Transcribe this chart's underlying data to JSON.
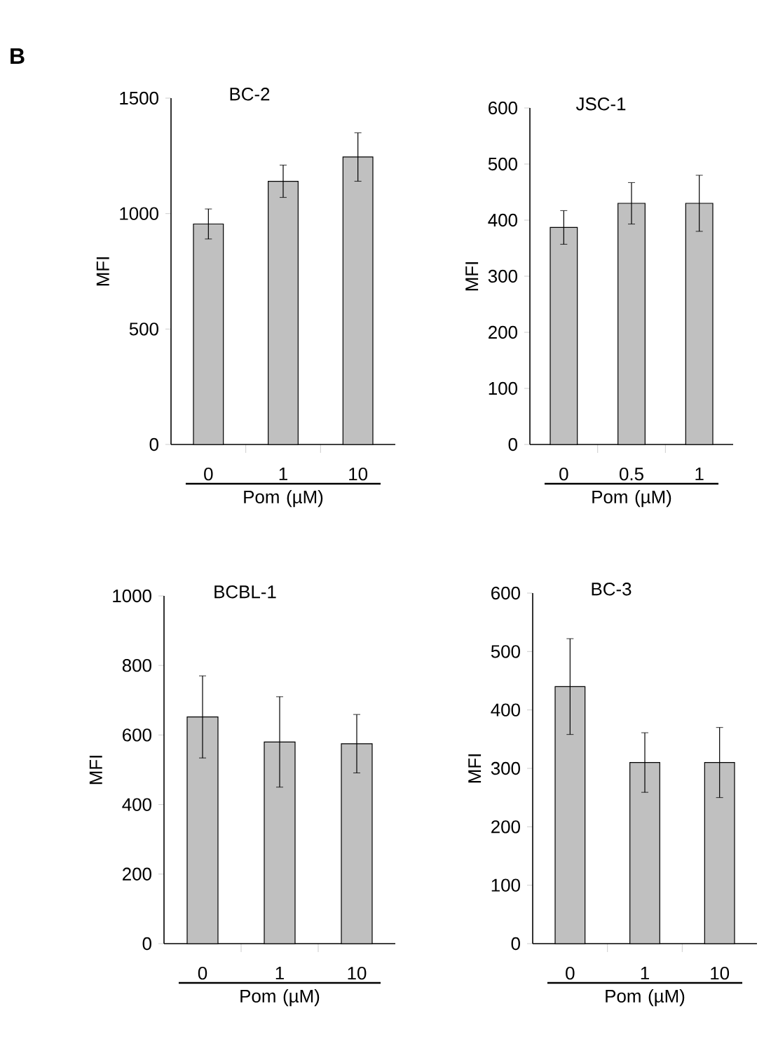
{
  "chart_data": [
    {
      "type": "bar",
      "title": "BC-2",
      "xlabel": "Pom (µM)",
      "ylabel": "MFI",
      "annotations": [
        "B"
      ],
      "categories": [
        "0",
        "1",
        "10"
      ],
      "values": [
        955,
        1140,
        1245
      ],
      "errors": [
        65,
        70,
        105
      ],
      "color": "#c0c0c0",
      "ylim": [
        0,
        1500
      ],
      "yticks": [
        0,
        500,
        1000,
        1500
      ]
    },
    {
      "type": "bar",
      "title": "JSC-1",
      "xlabel": "Pom (µM)",
      "ylabel": "MFI",
      "categories": [
        "0",
        "0.5",
        "1"
      ],
      "values": [
        387,
        430,
        430
      ],
      "errors": [
        30,
        37,
        50
      ],
      "color": "#c0c0c0",
      "ylim": [
        0,
        600
      ],
      "yticks": [
        0,
        100,
        200,
        300,
        400,
        500,
        600
      ]
    },
    {
      "type": "bar",
      "title": "BCBL-1",
      "xlabel": "Pom (µM)",
      "ylabel": "MFI",
      "categories": [
        "0",
        "1",
        "10"
      ],
      "values": [
        652,
        580,
        575
      ],
      "errors": [
        118,
        130,
        84
      ],
      "color": "#c0c0c0",
      "ylim": [
        0,
        1000
      ],
      "yticks": [
        0,
        200,
        400,
        600,
        800,
        1000
      ]
    },
    {
      "type": "bar",
      "title": "BC-3",
      "xlabel": "Pom (µM)",
      "ylabel": "MFI",
      "categories": [
        "0",
        "1",
        "10"
      ],
      "values": [
        440,
        310,
        310
      ],
      "errors": [
        82,
        51,
        60
      ],
      "color": "#c0c0c0",
      "ylim": [
        0,
        600
      ],
      "yticks": [
        0,
        100,
        200,
        300,
        400,
        500,
        600
      ]
    }
  ]
}
